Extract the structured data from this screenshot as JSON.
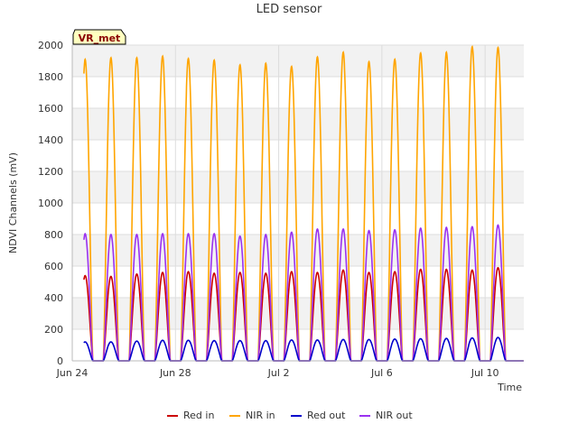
{
  "chart_data": {
    "type": "line",
    "title": "LED sensor",
    "xlabel": "Time",
    "ylabel": "NDVI Channels (mV)",
    "badge": "VR_met",
    "ylim": [
      0,
      2000
    ],
    "yticks": [
      0,
      200,
      400,
      600,
      800,
      1000,
      1200,
      1400,
      1600,
      1800,
      2000
    ],
    "xlim": [
      "2024-06-24",
      "2024-07-11 12:00"
    ],
    "xticks": [
      {
        "date": "2024-06-24",
        "label": "Jun 24"
      },
      {
        "date": "2024-06-28",
        "label": "Jun 28"
      },
      {
        "date": "2024-07-02",
        "label": "Jul 2"
      },
      {
        "date": "2024-07-06",
        "label": "Jul 6"
      },
      {
        "date": "2024-07-10",
        "label": "Jul 10"
      }
    ],
    "grid": true,
    "legend_position": "bottom",
    "peak_dates": [
      "2024-06-24 12:00",
      "2024-06-25 12:00",
      "2024-06-26 12:00",
      "2024-06-27 12:00",
      "2024-06-28 12:00",
      "2024-06-29 12:00",
      "2024-06-30 12:00",
      "2024-07-01 12:00",
      "2024-07-02 12:00",
      "2024-07-03 12:00",
      "2024-07-04 12:00",
      "2024-07-05 12:00",
      "2024-07-06 12:00",
      "2024-07-07 12:00",
      "2024-07-08 12:00",
      "2024-07-09 12:00",
      "2024-07-10 12:00",
      "2024-07-11 12:00"
    ],
    "series": [
      {
        "name": "Red in",
        "color": "#cc0000",
        "daily_peaks": [
          540,
          535,
          550,
          560,
          565,
          555,
          560,
          555,
          565,
          560,
          575,
          560,
          565,
          580,
          580,
          575,
          590,
          0
        ]
      },
      {
        "name": "NIR in",
        "color": "#ffa500",
        "daily_peaks": [
          1910,
          1920,
          1920,
          1930,
          1915,
          1905,
          1875,
          1885,
          1865,
          1925,
          1955,
          1895,
          1910,
          1950,
          1955,
          1990,
          1985,
          0
        ]
      },
      {
        "name": "Red out",
        "color": "#0000cc",
        "daily_peaks": [
          120,
          120,
          125,
          130,
          130,
          128,
          128,
          128,
          132,
          132,
          135,
          135,
          138,
          140,
          142,
          145,
          148,
          0
        ]
      },
      {
        "name": "NIR out",
        "color": "#9a32f0",
        "daily_peaks": [
          805,
          800,
          800,
          805,
          805,
          805,
          790,
          800,
          815,
          835,
          835,
          825,
          830,
          840,
          845,
          850,
          860,
          0
        ]
      }
    ]
  }
}
